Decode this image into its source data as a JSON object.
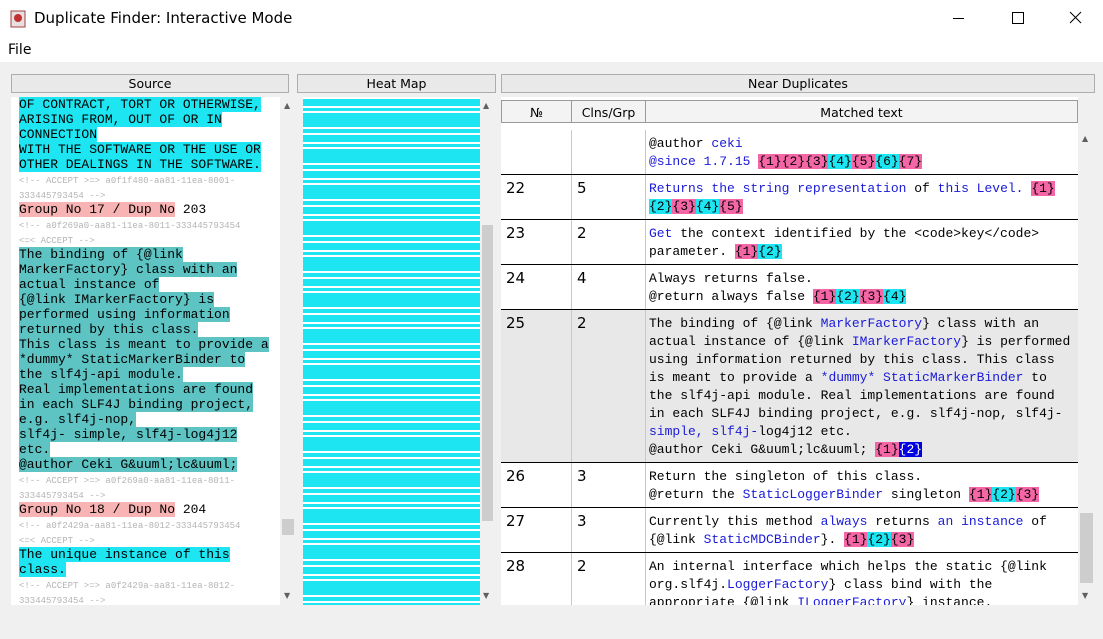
{
  "window": {
    "title": "Duplicate Finder: Interactive Mode"
  },
  "menu": [
    "File"
  ],
  "headers": {
    "source": "Source",
    "heatmap": "Heat Map",
    "near": "Near Duplicates"
  },
  "source": [
    [
      {
        "text": "OF CONTRACT, TORT OR OTHERWISE,",
        "bg": "#1de6f2"
      }
    ],
    [
      {
        "text": "ARISING FROM, OUT OF OR IN",
        "bg": "#1de6f2"
      }
    ],
    [
      {
        "text": "CONNECTION",
        "bg": "#1de6f2"
      }
    ],
    [
      {
        "text": "WITH THE SOFTWARE OR THE USE OR",
        "bg": "#1de6f2"
      }
    ],
    [
      {
        "text": "OTHER DEALINGS IN THE SOFTWARE.",
        "bg": "#1de6f2"
      }
    ],
    [
      {
        "text": "<!-- ACCEPT >=> a0f1f480-aa81-11ea-8001-",
        "color": "#b4b4b4"
      }
    ],
    [
      {
        "text": "333445793454 -->",
        "color": "#b4b4b4"
      }
    ],
    [
      {
        "text": "Group No 17 / Dup No",
        "bg": "#f8b4b4"
      },
      " 203"
    ],
    [
      {
        "text": "<!-- a0f269a0-aa81-11ea-8011-333445793454",
        "color": "#b4b4b4"
      }
    ],
    [
      {
        "text": "<=< ACCEPT -->",
        "color": "#b4b4b4"
      }
    ],
    [
      {
        "text": "The binding of {@link",
        "bg": "#5ec3c3"
      }
    ],
    [
      {
        "text": "MarkerFactory} class with an",
        "bg": "#5ec3c3"
      }
    ],
    [
      {
        "text": "actual instance of",
        "bg": "#5ec3c3"
      }
    ],
    [
      {
        "text": "{@link IMarkerFactory} is",
        "bg": "#5ec3c3"
      }
    ],
    [
      {
        "text": "performed using information",
        "bg": "#5ec3c3"
      }
    ],
    [
      {
        "text": "returned by this class.",
        "bg": "#5ec3c3"
      }
    ],
    [
      {
        "text": "This class is meant to provide a",
        "bg": "#5ec3c3"
      }
    ],
    [
      {
        "text": "*dummy* StaticMarkerBinder to",
        "bg": "#5ec3c3"
      }
    ],
    [
      {
        "text": "the slf4j-api module.",
        "bg": "#5ec3c3"
      }
    ],
    [
      {
        "text": "Real implementations are found",
        "bg": "#5ec3c3"
      }
    ],
    [
      {
        "text": "in each SLF4J binding project,",
        "bg": "#5ec3c3"
      }
    ],
    [
      {
        "text": "e.g. slf4j-nop,",
        "bg": "#5ec3c3"
      }
    ],
    [
      {
        "text": "slf4j- simple, slf4j-log4j12",
        "bg": "#5ec3c3"
      }
    ],
    [
      {
        "text": "etc.",
        "bg": "#5ec3c3"
      }
    ],
    [
      {
        "text": "@author Ceki G&uuml;lc&uuml;",
        "bg": "#5ec3c3"
      }
    ],
    [
      {
        "text": "<!-- ACCEPT >=> a0f269a0-aa81-11ea-8011-",
        "color": "#b4b4b4"
      }
    ],
    [
      {
        "text": "333445793454 -->",
        "color": "#b4b4b4"
      }
    ],
    [
      {
        "text": "Group No 18 / Dup No",
        "bg": "#f8b4b4"
      },
      " 204"
    ],
    [
      {
        "text": "<!-- a0f2429a-aa81-11ea-8012-333445793454",
        "color": "#b4b4b4"
      }
    ],
    [
      {
        "text": "<=< ACCEPT -->",
        "color": "#b4b4b4"
      }
    ],
    [
      {
        "text": "The unique instance of this",
        "bg": "#1de6f2"
      }
    ],
    [
      {
        "text": "class.",
        "bg": "#1de6f2"
      }
    ],
    [
      {
        "text": "<!-- ACCEPT >=> a0f2429a-aa81-11ea-8012-",
        "color": "#b4b4b4"
      }
    ],
    [
      {
        "text": "333445793454 -->",
        "color": "#b4b4b4"
      }
    ]
  ],
  "table": {
    "columns": [
      "№",
      "Clns/Grp",
      "Matched text"
    ],
    "rows": [
      {
        "no": null,
        "clns": null,
        "lines": [
          [
            "@author ",
            {
              "text": "ceki",
              "color": "#1a1ad8"
            }
          ],
          [
            {
              "text": "@since 1.7.15",
              "color": "#1a1ad8"
            },
            " ",
            {
              "text": "{1}",
              "bg": "#f566a6"
            },
            {
              "text": "{2}",
              "bg": "#f566a6"
            },
            {
              "text": "{3}",
              "bg": "#f566a6"
            },
            {
              "text": "{4}",
              "bg": "#1de6f2"
            },
            {
              "text": "{5}",
              "bg": "#f566a6"
            },
            {
              "text": "{6}",
              "bg": "#1de6f2"
            },
            {
              "text": "{7}",
              "bg": "#f566a6"
            }
          ]
        ]
      },
      {
        "no": "22",
        "clns": "5",
        "lines": [
          [
            {
              "text": "Returns the string representation",
              "color": "#1a1ad8"
            },
            " of ",
            {
              "text": "this Level.",
              "color": "#1a1ad8"
            },
            " ",
            {
              "text": "{1}",
              "bg": "#f566a6"
            }
          ],
          [
            {
              "text": "{2}",
              "bg": "#1de6f2"
            },
            {
              "text": "{3}",
              "bg": "#f566a6"
            },
            {
              "text": "{4}",
              "bg": "#1de6f2"
            },
            {
              "text": "{5}",
              "bg": "#f566a6"
            }
          ]
        ]
      },
      {
        "no": "23",
        "clns": "2",
        "lines": [
          [
            {
              "text": "Get",
              "color": "#1a1ad8"
            },
            " the context identified by the <code>key</code>"
          ],
          [
            "parameter. ",
            {
              "text": "{1}",
              "bg": "#f566a6"
            },
            {
              "text": "{2}",
              "bg": "#1de6f2"
            }
          ]
        ]
      },
      {
        "no": "24",
        "clns": "4",
        "lines": [
          [
            "Always returns false."
          ],
          [
            "@return always false ",
            {
              "text": "{1}",
              "bg": "#f566a6"
            },
            {
              "text": "{2}",
              "bg": "#1de6f2"
            },
            {
              "text": "{3}",
              "bg": "#f566a6"
            },
            {
              "text": "{4}",
              "bg": "#1de6f2"
            }
          ]
        ]
      },
      {
        "no": "25",
        "clns": "2",
        "selected": true,
        "lines": [
          [
            "The binding of {@link ",
            {
              "text": "MarkerFactory",
              "color": "#1a1ad8"
            },
            "} class with an"
          ],
          [
            "actual instance of {@link ",
            {
              "text": "IMarkerFactory",
              "color": "#1a1ad8"
            },
            "} is performed"
          ],
          [
            "using information returned by this class. This class"
          ],
          [
            "is meant to provide a ",
            {
              "text": "*dummy* StaticMarkerBinder",
              "color": "#1a1ad8"
            },
            " to"
          ],
          [
            "the slf4j-api module. Real implementations are found"
          ],
          [
            "in each SLF4J binding project, e.g. slf4j-nop, slf4j-"
          ],
          [
            {
              "text": "simple, slf4j-",
              "color": "#1a1ad8"
            },
            "log4j12 etc."
          ],
          [
            "@author Ceki G&uuml;lc&uuml; ",
            {
              "text": "{1}",
              "bg": "#f566a6"
            },
            {
              "text": "{2}",
              "bg": "#0000e0",
              "color": "#ffffff"
            }
          ]
        ]
      },
      {
        "no": "26",
        "clns": "3",
        "lines": [
          [
            "Return the singleton of this class."
          ],
          [
            "@return the ",
            {
              "text": "StaticLoggerBinder",
              "color": "#1a1ad8"
            },
            " singleton ",
            {
              "text": "{1}",
              "bg": "#f566a6"
            },
            {
              "text": "{2}",
              "bg": "#1de6f2"
            },
            {
              "text": "{3}",
              "bg": "#f566a6"
            }
          ]
        ]
      },
      {
        "no": "27",
        "clns": "3",
        "lines": [
          [
            "Currently this method ",
            {
              "text": "always",
              "color": "#1a1ad8"
            },
            " returns ",
            {
              "text": "an instance",
              "color": "#1a1ad8"
            },
            " of"
          ],
          [
            "{@link ",
            {
              "text": "StaticMDCBinder",
              "color": "#1a1ad8"
            },
            "}. ",
            {
              "text": "{1}",
              "bg": "#f566a6"
            },
            {
              "text": "{2}",
              "bg": "#1de6f2"
            },
            {
              "text": "{3}",
              "bg": "#f566a6"
            }
          ]
        ]
      },
      {
        "no": "28",
        "clns": "2",
        "lines": [
          [
            "An internal interface which helps the static {@link"
          ],
          [
            "org.slf4j.",
            {
              "text": "LoggerFactory",
              "color": "#1a1ad8"
            },
            "} class bind with the"
          ],
          [
            "appropriate {@link ",
            {
              "text": "ILoggerFactory",
              "color": "#1a1ad8"
            },
            "} instance."
          ]
        ]
      }
    ]
  }
}
